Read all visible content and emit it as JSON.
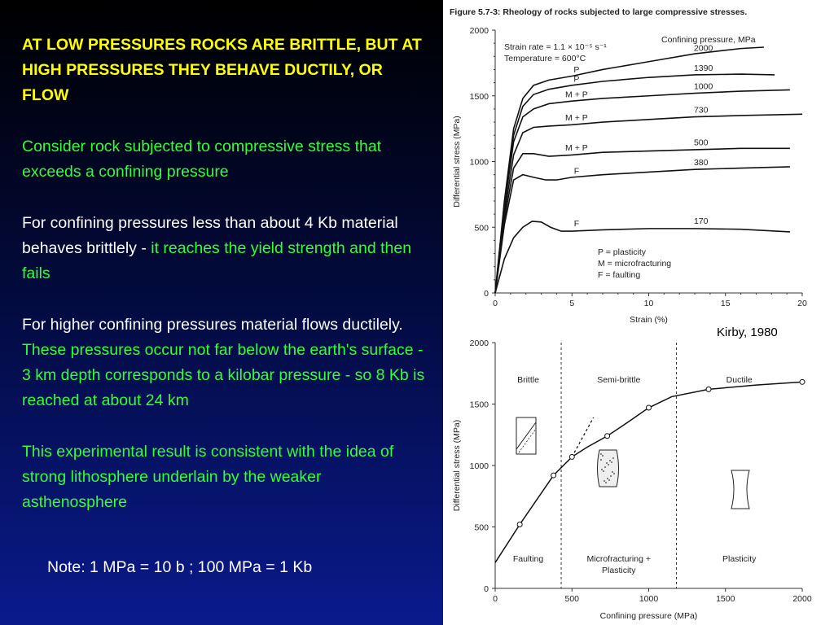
{
  "slide": {
    "heading": "AT  LOW PRESSURES ROCKS ARE BRITTLE, BUT AT HIGH PRESSURES THEY  BEHAVE DUCTILY, OR FLOW",
    "p1": "Consider rock subjected to compressive stress that exceeds a confining pressure",
    "p2_white": "For confining pressures less than about 4 Kb material behaves  brittlely - ",
    "p2_green": "it reaches the yield strength and then fails",
    "p3_white": "For higher  confining pressures material flows ductilely. ",
    "p3_green": "These pressures occur not far below the earth's surface - 3 km depth corresponds to a kilobar pressure - so 8 Kb is reached at about 24 km",
    "p4": "This experimental result is consistent with the idea of strong lithosphere underlain by the weaker asthenosphere",
    "note": "Note: 1 MPa = 10 b ; 100 MPa  = 1 Kb",
    "citation": "Kirby, 1980",
    "colors": {
      "heading": "#ffff00",
      "green": "#33ff33",
      "text": "#ffffff"
    }
  },
  "chart_data": [
    {
      "type": "line",
      "title": "Figure 5.7-3: Rheology of rocks subjected to large compressive stresses.",
      "xlabel": "Strain (%)",
      "ylabel": "Differential stress (MPa)",
      "xlim": [
        0,
        20
      ],
      "ylim": [
        0,
        2000
      ],
      "xticks": [
        "0",
        "5",
        "10",
        "15",
        "20"
      ],
      "yticks": [
        "0",
        "500",
        "1000",
        "1500",
        "2000"
      ],
      "annotations": [
        "Strain rate = 1.1 × 10⁻⁵ s⁻¹",
        "Temperature = 600°C",
        "Confining pressure, MPa"
      ],
      "legend_notes": [
        "P = plasticity",
        "M = microfracturing",
        "F = faulting"
      ],
      "series": [
        {
          "name": "2000",
          "mode": "P",
          "x": [
            0,
            0.6,
            1.2,
            1.8,
            2.5,
            3.5,
            5,
            7,
            10,
            13,
            16,
            17.5
          ],
          "y": [
            0,
            700,
            1250,
            1480,
            1580,
            1620,
            1650,
            1700,
            1760,
            1820,
            1860,
            1870
          ]
        },
        {
          "name": "1390",
          "mode": "P",
          "x": [
            0,
            0.6,
            1.2,
            1.8,
            2.5,
            3.5,
            5,
            7,
            10,
            13,
            16,
            18.2
          ],
          "y": [
            0,
            680,
            1200,
            1420,
            1510,
            1550,
            1580,
            1610,
            1640,
            1660,
            1665,
            1660
          ]
        },
        {
          "name": "1000",
          "mode": "M + P",
          "x": [
            0,
            0.6,
            1.2,
            1.8,
            2.5,
            3.5,
            5,
            7,
            10,
            13,
            16,
            19.2
          ],
          "y": [
            0,
            650,
            1150,
            1340,
            1400,
            1440,
            1460,
            1480,
            1500,
            1520,
            1535,
            1545
          ]
        },
        {
          "name": "730",
          "mode": "M + P",
          "x": [
            0,
            0.6,
            1.2,
            1.8,
            2.5,
            3.5,
            5,
            7,
            10,
            13,
            16,
            20
          ],
          "y": [
            0,
            600,
            1050,
            1220,
            1260,
            1270,
            1280,
            1300,
            1320,
            1340,
            1350,
            1360
          ]
        },
        {
          "name": "500",
          "mode": "M + P",
          "x": [
            0,
            0.6,
            1.2,
            1.8,
            2.5,
            3.5,
            5,
            7,
            10,
            13,
            16,
            19.2
          ],
          "y": [
            0,
            560,
            950,
            1060,
            1060,
            1040,
            1050,
            1070,
            1080,
            1090,
            1100,
            1100
          ]
        },
        {
          "name": "380",
          "mode": "F",
          "x": [
            0,
            0.6,
            1.2,
            1.8,
            2.5,
            3.3,
            4,
            5,
            7,
            10,
            13,
            16,
            19.2
          ],
          "y": [
            0,
            520,
            860,
            900,
            880,
            860,
            860,
            880,
            900,
            920,
            940,
            950,
            960
          ]
        },
        {
          "name": "170",
          "mode": "F",
          "x": [
            0,
            0.6,
            1.2,
            1.8,
            2.4,
            3,
            3.6,
            4.3,
            5,
            7,
            10,
            13,
            16,
            19.2
          ],
          "y": [
            0,
            260,
            420,
            500,
            545,
            540,
            500,
            470,
            470,
            480,
            490,
            490,
            485,
            465
          ]
        }
      ]
    },
    {
      "type": "scatter",
      "xlabel": "Confining pressure (MPa)",
      "ylabel": "Differential stress (MPa)",
      "xlim": [
        0,
        2000
      ],
      "ylim": [
        0,
        2000
      ],
      "xticks": [
        "0",
        "500",
        "1000",
        "1500",
        "2000"
      ],
      "yticks": [
        "0",
        "500",
        "1000",
        "1500",
        "2000"
      ],
      "regions": [
        "Brittle",
        "Semi-brittle",
        "Ductile"
      ],
      "region_bottom_labels": [
        "Faulting",
        "Microfracturing + Plasticity",
        "Plasticity"
      ],
      "boundaries": [
        430,
        1180
      ],
      "points": [
        {
          "x": 160,
          "y": 520
        },
        {
          "x": 380,
          "y": 920
        },
        {
          "x": 500,
          "y": 1070
        },
        {
          "x": 730,
          "y": 1240
        },
        {
          "x": 1000,
          "y": 1470
        },
        {
          "x": 1390,
          "y": 1620
        },
        {
          "x": 2000,
          "y": 1680
        }
      ],
      "trend_curve": {
        "x": [
          0,
          160,
          380,
          500,
          600,
          730,
          850,
          1000,
          1150,
          1390,
          1700,
          2000
        ],
        "y": [
          210,
          520,
          920,
          1070,
          1150,
          1240,
          1340,
          1470,
          1560,
          1620,
          1655,
          1680
        ]
      },
      "extension_line": {
        "x": [
          500,
          640
        ],
        "y": [
          1070,
          1390
        ]
      }
    }
  ]
}
